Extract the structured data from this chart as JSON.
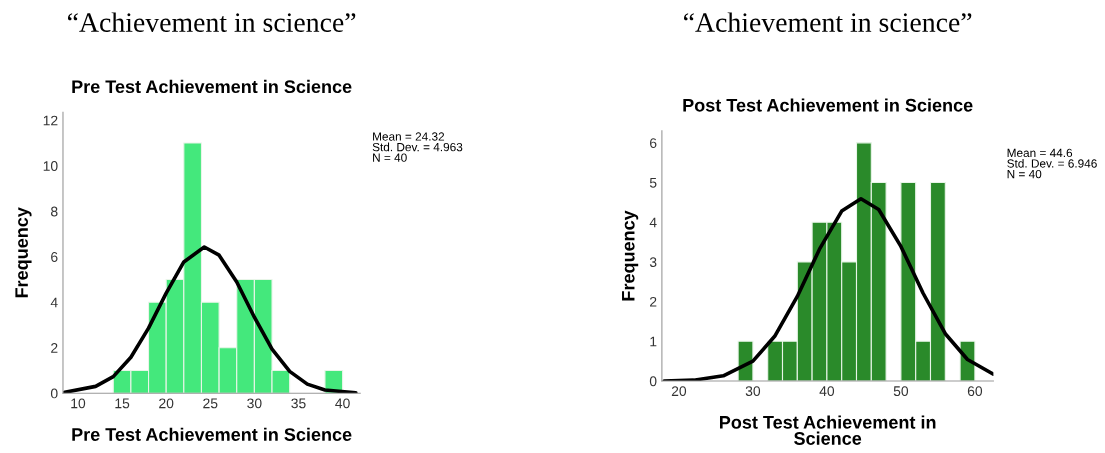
{
  "chart_data": [
    {
      "type": "histogram",
      "title": "“Achievement in science”",
      "subtitle": "Pre Test Achievement in Science",
      "xlabel": "Pre Test Achievement in Science",
      "ylabel": "Frequency",
      "bins": [
        14,
        16,
        18,
        20,
        22,
        24,
        26,
        28,
        30,
        32,
        34,
        36,
        38,
        40
      ],
      "values": [
        1,
        1,
        4,
        5,
        11,
        4,
        2,
        5,
        5,
        1,
        0,
        0,
        1
      ],
      "color": "#44e87c",
      "xlim": [
        8.3,
        42
      ],
      "ylim": [
        0,
        12.35
      ],
      "xticks": [
        10,
        15,
        20,
        25,
        30,
        35,
        40
      ],
      "yticks": [
        0,
        2,
        4,
        6,
        8,
        10,
        12
      ],
      "annotations": [
        "Mean = 24.32\nStd. Dev. = 4.963\nN = 40"
      ],
      "series": [
        {
          "type": "line",
          "color": "#000000",
          "x": [
            8.5,
            12,
            14,
            16,
            18,
            20,
            22,
            24.32,
            26,
            28,
            30,
            32,
            34,
            36,
            38,
            41.5
          ],
          "values": [
            0.04,
            0.3,
            0.73,
            1.58,
            2.86,
            4.4,
            5.77,
            6.43,
            6.07,
            4.89,
            3.34,
            1.94,
            0.96,
            0.4,
            0.14,
            0.02
          ]
        }
      ]
    },
    {
      "type": "histogram",
      "title": "“Achievement in science”",
      "subtitle": "Post Test Achievement in Science",
      "xlabel": "Post Test Achievement in\nScience",
      "ylabel": "Frequency",
      "bins": [
        28,
        30,
        32,
        34,
        36,
        38,
        40,
        42,
        44,
        46,
        48,
        50,
        52,
        54,
        56,
        58,
        60
      ],
      "values": [
        1,
        0,
        1,
        1,
        3,
        4,
        4,
        3,
        6,
        5,
        0,
        5,
        1,
        5,
        0,
        1
      ],
      "color": "#2a8a2a",
      "xlim": [
        17.7,
        62.5
      ],
      "ylim": [
        0,
        6.3
      ],
      "xticks": [
        20,
        30,
        40,
        50,
        60
      ],
      "yticks": [
        0,
        1,
        2,
        3,
        4,
        5,
        6
      ],
      "annotations": [
        "Mean = 44.6\nStd. Dev. = 6.946\nN = 40"
      ],
      "series": [
        {
          "type": "line",
          "color": "#000000",
          "x": [
            18,
            22,
            26,
            30,
            33,
            36,
            39,
            42,
            44.6,
            47,
            50,
            53,
            56,
            59,
            62.5
          ],
          "values": [
            0.0,
            0.02,
            0.13,
            0.5,
            1.14,
            2.13,
            3.32,
            4.28,
            4.59,
            4.32,
            3.39,
            2.21,
            1.19,
            0.54,
            0.17
          ]
        }
      ]
    }
  ]
}
